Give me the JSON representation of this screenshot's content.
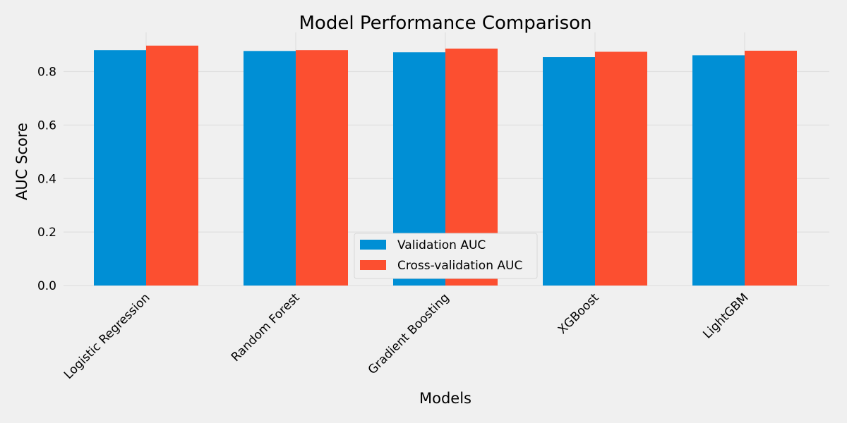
{
  "chart_data": {
    "type": "bar",
    "title": "Model Performance Comparison",
    "xlabel": "Models",
    "ylabel": "AUC Score",
    "categories": [
      "Logistic Regression",
      "Random Forest",
      "Gradient Boosting",
      "XGBoost",
      "LightGBM"
    ],
    "series": [
      {
        "name": "Validation AUC",
        "values": [
          0.88,
          0.877,
          0.872,
          0.854,
          0.861
        ],
        "color": "#008fd5"
      },
      {
        "name": "Cross-validation AUC",
        "values": [
          0.897,
          0.88,
          0.886,
          0.874,
          0.878
        ],
        "color": "#fc4f30"
      }
    ],
    "ylim": [
      0,
      0.92
    ],
    "yticks": [
      "0.0",
      "0.2",
      "0.4",
      "0.6",
      "0.8"
    ],
    "grid": true,
    "legend_position": "bottom-center"
  }
}
